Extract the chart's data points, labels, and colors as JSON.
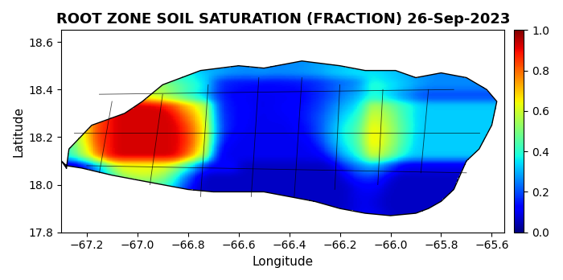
{
  "title": "ROOT ZONE SOIL SATURATION (FRACTION) 26-Sep-2023",
  "xlabel": "Longitude",
  "ylabel": "Latitude",
  "xlim": [
    -67.3,
    -65.55
  ],
  "ylim": [
    17.8,
    18.65
  ],
  "xticks": [
    -67.2,
    -67.0,
    -66.8,
    -66.6,
    -66.4,
    -66.2,
    -66.0,
    -65.8,
    -65.6
  ],
  "yticks": [
    17.8,
    18.0,
    18.2,
    18.4,
    18.6
  ],
  "cmap_colors": [
    [
      0.0,
      "#000080"
    ],
    [
      0.05,
      "#0000cd"
    ],
    [
      0.1,
      "#0000ff"
    ],
    [
      0.2,
      "#0080ff"
    ],
    [
      0.3,
      "#00ffff"
    ],
    [
      0.4,
      "#80ff80"
    ],
    [
      0.5,
      "#ffff00"
    ],
    [
      0.6,
      "#ffa500"
    ],
    [
      0.7,
      "#ff4500"
    ],
    [
      0.85,
      "#ff0000"
    ],
    [
      0.95,
      "#8b0000"
    ],
    [
      1.0,
      "#000000"
    ]
  ],
  "colorbar_ticks": [
    0,
    0.2,
    0.4,
    0.6,
    0.8,
    1.0
  ],
  "vmin": 0.0,
  "vmax": 1.0,
  "background_color": "#ffffff",
  "title_fontsize": 13,
  "label_fontsize": 11,
  "tick_fontsize": 10
}
